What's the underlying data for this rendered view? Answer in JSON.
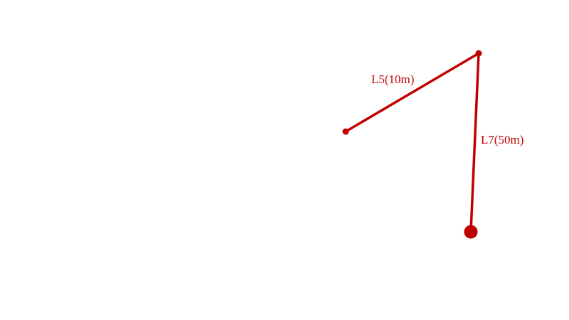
{
  "colors": {
    "line": "#c00000",
    "background": "#ffffff"
  },
  "segments": [
    {
      "id": "L5",
      "label": "L5(10m)"
    },
    {
      "id": "L7",
      "label": "L7(50m)"
    }
  ]
}
